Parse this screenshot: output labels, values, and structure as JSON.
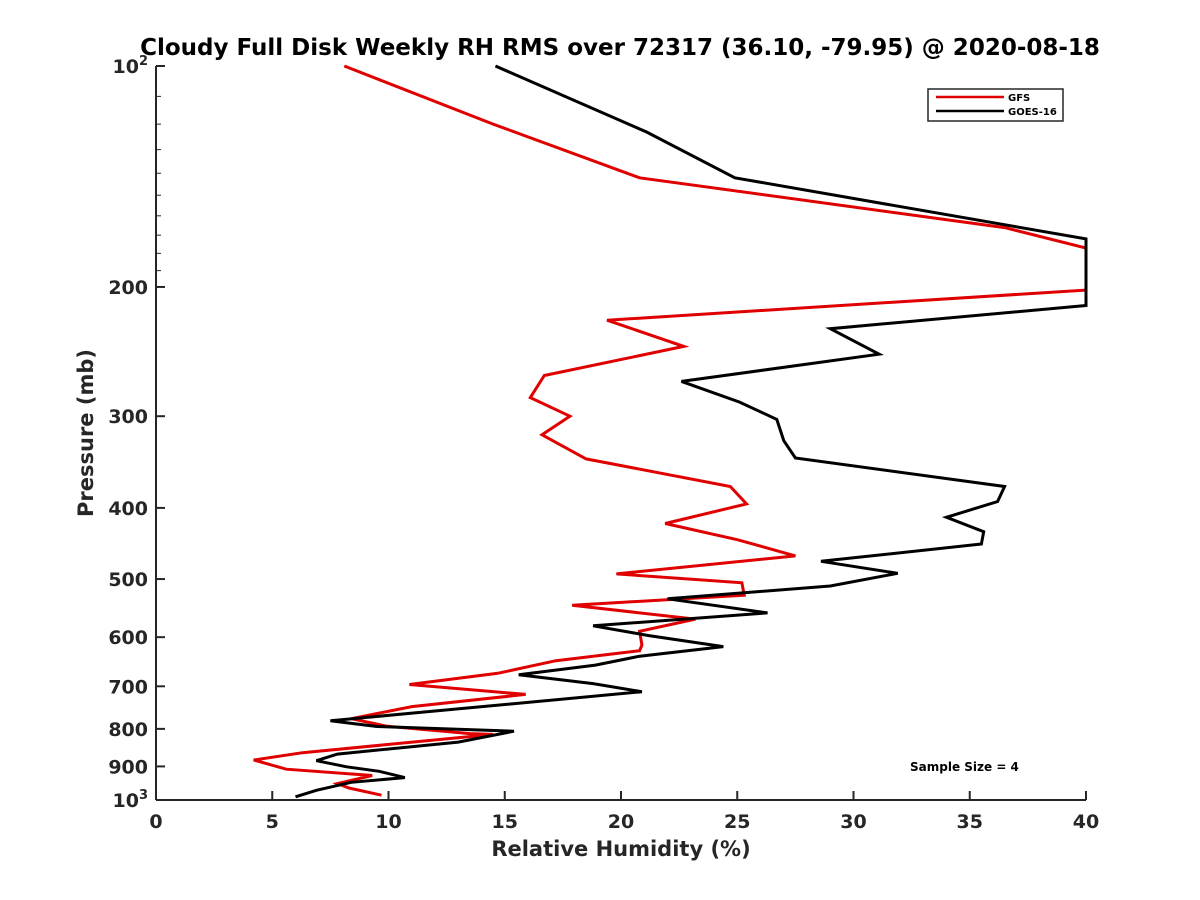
{
  "chart_data": {
    "type": "line",
    "title": "Cloudy Full Disk Weekly RH RMS over 72317 (36.10, -79.95) @ 2020-08-18",
    "xlabel": "Relative Humidity (%)",
    "ylabel": "Pressure (mb)",
    "xlim": [
      0,
      40
    ],
    "ylim": [
      100,
      1000
    ],
    "yscale": "log",
    "y_reversed": true,
    "x_ticks": [
      0,
      5,
      10,
      15,
      20,
      25,
      30,
      35,
      40
    ],
    "x_tick_labels": [
      "0",
      "5",
      "10",
      "15",
      "20",
      "25",
      "30",
      "35",
      "40"
    ],
    "y_ticks": [
      {
        "value": 100,
        "base": "10",
        "exp": "2"
      },
      {
        "value": 200,
        "label": "200"
      },
      {
        "value": 300,
        "label": "300"
      },
      {
        "value": 400,
        "label": "400"
      },
      {
        "value": 500,
        "label": "500"
      },
      {
        "value": 600,
        "label": "600"
      },
      {
        "value": 700,
        "label": "700"
      },
      {
        "value": 800,
        "label": "800"
      },
      {
        "value": 900,
        "label": "900"
      },
      {
        "value": 1000,
        "base": "10",
        "exp": "3"
      }
    ],
    "grid": false,
    "legend_position": "top-right",
    "annotation": "Sample Size = 4",
    "series": [
      {
        "name": "GFS",
        "color": "#e00000",
        "points": [
          [
            8.1,
            100
          ],
          [
            14.5,
            120
          ],
          [
            20.8,
            142
          ],
          [
            36.5,
            166
          ],
          [
            40.0,
            177
          ],
          [
            40.0,
            202
          ],
          [
            19.4,
            222
          ],
          [
            22.7,
            241
          ],
          [
            16.7,
            264
          ],
          [
            16.1,
            283
          ],
          [
            17.8,
            300
          ],
          [
            16.6,
            318
          ],
          [
            18.5,
            343
          ],
          [
            24.7,
            374
          ],
          [
            25.4,
            395
          ],
          [
            21.9,
            420
          ],
          [
            25.0,
            442
          ],
          [
            27.5,
            465
          ],
          [
            19.8,
            492
          ],
          [
            25.2,
            506
          ],
          [
            25.3,
            526
          ],
          [
            17.9,
            543
          ],
          [
            23.2,
            567
          ],
          [
            20.8,
            589
          ],
          [
            20.9,
            615
          ],
          [
            20.8,
            626
          ],
          [
            17.2,
            646
          ],
          [
            14.7,
            672
          ],
          [
            10.9,
            696
          ],
          [
            15.9,
            718
          ],
          [
            11.0,
            746
          ],
          [
            8.4,
            775
          ],
          [
            9.9,
            793
          ],
          [
            13.5,
            812
          ],
          [
            14.5,
            814
          ],
          [
            6.3,
            862
          ],
          [
            4.2,
            882
          ],
          [
            5.6,
            908
          ],
          [
            9.3,
            926
          ],
          [
            7.8,
            950
          ],
          [
            8.3,
            963
          ],
          [
            9.7,
            985
          ]
        ]
      },
      {
        "name": "GOES-16",
        "color": "#000000",
        "points": [
          [
            14.6,
            100
          ],
          [
            21.1,
            123
          ],
          [
            24.9,
            142
          ],
          [
            40.0,
            172
          ],
          [
            40.0,
            212
          ],
          [
            29.0,
            228
          ],
          [
            31.1,
            247
          ],
          [
            22.6,
            269
          ],
          [
            25.1,
            287
          ],
          [
            26.7,
            303
          ],
          [
            27.0,
            324
          ],
          [
            27.5,
            342
          ],
          [
            36.5,
            374
          ],
          [
            36.2,
            392
          ],
          [
            34.0,
            412
          ],
          [
            35.6,
            431
          ],
          [
            35.5,
            448
          ],
          [
            28.6,
            473
          ],
          [
            31.9,
            491
          ],
          [
            29.0,
            511
          ],
          [
            22.0,
            532
          ],
          [
            26.3,
            556
          ],
          [
            18.8,
            579
          ],
          [
            21.2,
            597
          ],
          [
            24.4,
            618
          ],
          [
            20.8,
            637
          ],
          [
            18.9,
            655
          ],
          [
            15.6,
            675
          ],
          [
            18.8,
            694
          ],
          [
            20.9,
            712
          ],
          [
            10.9,
            762
          ],
          [
            7.5,
            780
          ],
          [
            9.5,
            794
          ],
          [
            15.4,
            806
          ],
          [
            13.0,
            834
          ],
          [
            7.8,
            866
          ],
          [
            6.9,
            884
          ],
          [
            8.2,
            901
          ],
          [
            9.6,
            914
          ],
          [
            10.7,
            932
          ],
          [
            8.4,
            946
          ],
          [
            6.9,
            970
          ],
          [
            6.0,
            990
          ]
        ]
      }
    ]
  }
}
